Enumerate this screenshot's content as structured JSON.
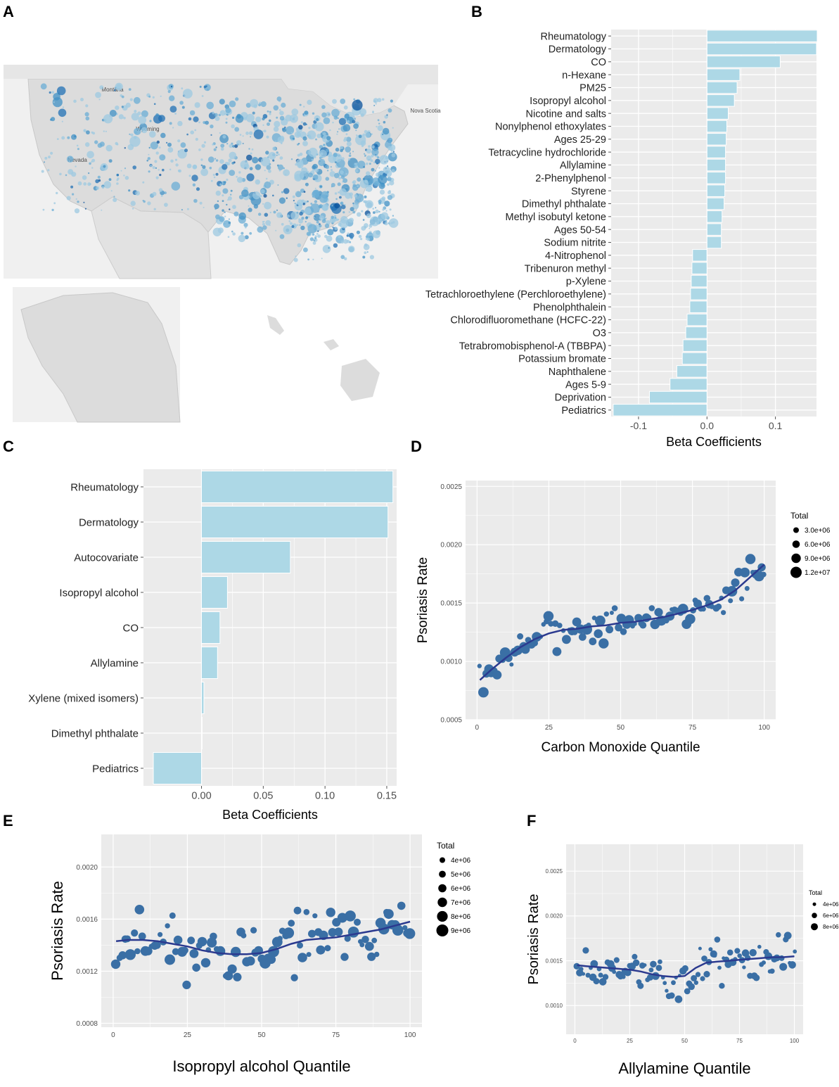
{
  "panel_labels": [
    "A",
    "B",
    "C",
    "D",
    "E",
    "F"
  ],
  "map": {
    "land_color": "#dcdcdc",
    "water_color": "#f0f0f0",
    "dot_colors": [
      "#9ecae1",
      "#6baed6",
      "#4292c6",
      "#2171b5",
      "#08519c"
    ],
    "labels": [
      "Montana",
      "Wyoming",
      "Nevada",
      "Nova Scotia"
    ]
  },
  "chart_data": [
    {
      "panel": "B",
      "type": "bar",
      "orientation": "horizontal",
      "xlabel": "Beta Coefficients",
      "xlim": [
        -0.14,
        0.16
      ],
      "xticks": [
        -0.1,
        0.0,
        0.1
      ],
      "xtick_labels": [
        "-0.1",
        "0.0",
        "0.1"
      ],
      "bar_color": "#add8e6",
      "categories": [
        "Rheumatology",
        "Dermatology",
        "CO",
        "n-Hexane",
        "PM25",
        "Isopropyl alcohol",
        "Nicotine and salts",
        "Nonylphenol ethoxylates",
        "Ages 25-29",
        "Tetracycline hydrochloride",
        "Allylamine",
        "2-Phenylphenol",
        "Styrene",
        "Dimethyl phthalate",
        "Methyl isobutyl ketone",
        "Ages 50-54",
        "Sodium nitrite",
        "4-Nitrophenol",
        "Tribenuron methyl",
        "p-Xylene",
        "Tetrachloroethylene (Perchloroethylene)",
        "Phenolphthalein",
        "Chlorodifluoromethane (HCFC-22)",
        "O3",
        "Tetrabromobisphenol-A (TBBPA)",
        "Potassium bromate",
        "Naphthalene",
        "Ages 5-9",
        "Deprivation",
        "Pediatrics"
      ],
      "values": [
        0.161,
        0.16,
        0.107,
        0.048,
        0.044,
        0.04,
        0.031,
        0.029,
        0.028,
        0.027,
        0.027,
        0.027,
        0.026,
        0.025,
        0.022,
        0.021,
        0.021,
        -0.021,
        -0.022,
        -0.023,
        -0.024,
        -0.025,
        -0.029,
        -0.031,
        -0.035,
        -0.036,
        -0.044,
        -0.054,
        -0.084,
        -0.137
      ]
    },
    {
      "panel": "C",
      "type": "bar",
      "orientation": "horizontal",
      "xlabel": "Beta Coefficients",
      "xlim": [
        -0.047,
        0.158
      ],
      "xticks": [
        0.0,
        0.05,
        0.1,
        0.15
      ],
      "xtick_labels": [
        "0.00",
        "0.05",
        "0.10",
        "0.15"
      ],
      "bar_color": "#add8e6",
      "categories": [
        "Rheumatology",
        "Dermatology",
        "Autocovariate",
        "Isopropyl alcohol",
        "CO",
        "Allylamine",
        "Xylene (mixed isomers)",
        "Dimethyl phthalate",
        "Pediatrics"
      ],
      "values": [
        0.155,
        0.151,
        0.072,
        0.021,
        0.015,
        0.013,
        0.002,
        0.0005,
        -0.039
      ]
    },
    {
      "panel": "D",
      "type": "scatter",
      "xlabel": "Carbon Monoxide Quantile",
      "ylabel": "Psoriasis Rate",
      "xlim": [
        -4,
        104
      ],
      "ylim": [
        0.0005,
        0.00255
      ],
      "xticks": [
        0,
        25,
        50,
        75,
        100
      ],
      "xtick_labels": [
        "0",
        "25",
        "50",
        "75",
        "100"
      ],
      "yticks": [
        0.0005,
        0.001,
        0.0015,
        0.002,
        0.0025
      ],
      "ytick_labels": [
        "0.0005",
        "0.0010",
        "0.0015",
        "0.0020",
        "0.0025"
      ],
      "point_color": "#3a6fa5",
      "smooth_color": "#2b3a8f",
      "legend": {
        "title": "Total",
        "labels": [
          "3.0e+06",
          "6.0e+06",
          "9.0e+06",
          "1.2e+07"
        ]
      },
      "smooth_x": [
        1,
        5,
        10,
        15,
        20,
        25,
        30,
        35,
        40,
        45,
        50,
        55,
        60,
        65,
        70,
        75,
        80,
        85,
        90,
        95,
        100
      ],
      "smooth_y": [
        0.00084,
        0.00093,
        0.00103,
        0.00112,
        0.00119,
        0.00124,
        0.00127,
        0.00128,
        0.0013,
        0.00131,
        0.00133,
        0.00134,
        0.00136,
        0.00138,
        0.00141,
        0.00144,
        0.00148,
        0.00153,
        0.00161,
        0.00172,
        0.00183
      ]
    },
    {
      "panel": "E",
      "type": "scatter",
      "xlabel": "Isopropyl alcohol Quantile",
      "ylabel": "Psoriasis Rate",
      "xlim": [
        -4,
        104
      ],
      "ylim": [
        0.00077,
        0.00225
      ],
      "xticks": [
        0,
        25,
        50,
        75,
        100
      ],
      "xtick_labels": [
        "0",
        "25",
        "50",
        "75",
        "100"
      ],
      "yticks": [
        0.0008,
        0.0012,
        0.0016,
        0.002
      ],
      "ytick_labels": [
        "0.0008",
        "0.0012",
        "0.0016",
        "0.0020"
      ],
      "point_color": "#3a6fa5",
      "smooth_color": "#2b3a8f",
      "legend": {
        "title": "Total",
        "labels": [
          "4e+06",
          "5e+06",
          "6e+06",
          "7e+06",
          "8e+06",
          "9e+06"
        ]
      },
      "smooth_x": [
        1,
        5,
        10,
        15,
        20,
        25,
        30,
        35,
        40,
        45,
        50,
        55,
        60,
        65,
        70,
        75,
        80,
        85,
        90,
        95,
        100
      ],
      "smooth_y": [
        0.00143,
        0.00144,
        0.00144,
        0.00143,
        0.00141,
        0.00139,
        0.00136,
        0.00134,
        0.00133,
        0.00133,
        0.00134,
        0.00137,
        0.00141,
        0.00144,
        0.00145,
        0.00146,
        0.00148,
        0.0015,
        0.00152,
        0.00155,
        0.00158
      ]
    },
    {
      "panel": "F",
      "type": "scatter",
      "xlabel": "Allylamine Quantile",
      "ylabel": "Psoriasis Rate",
      "xlim": [
        -4,
        104
      ],
      "ylim": [
        0.00068,
        0.0028
      ],
      "xticks": [
        0,
        25,
        50,
        75,
        100
      ],
      "xtick_labels": [
        "0",
        "25",
        "50",
        "75",
        "100"
      ],
      "yticks": [
        0.001,
        0.0015,
        0.002,
        0.0025
      ],
      "ytick_labels": [
        "0.0010",
        "0.0015",
        "0.0020",
        "0.0025"
      ],
      "point_color": "#3a6fa5",
      "smooth_color": "#2b3a8f",
      "legend": {
        "title": "Total",
        "labels": [
          "4e+06",
          "6e+06",
          "8e+06"
        ]
      },
      "smooth_x": [
        1,
        5,
        10,
        15,
        20,
        25,
        30,
        35,
        40,
        45,
        50,
        55,
        60,
        65,
        70,
        75,
        80,
        85,
        90,
        95,
        100
      ],
      "smooth_y": [
        0.00145,
        0.00144,
        0.00143,
        0.00142,
        0.00141,
        0.0014,
        0.00138,
        0.00135,
        0.00133,
        0.00132,
        0.00133,
        0.00142,
        0.00148,
        0.00149,
        0.0015,
        0.00151,
        0.00152,
        0.00153,
        0.00154,
        0.00154,
        0.00155
      ]
    }
  ]
}
